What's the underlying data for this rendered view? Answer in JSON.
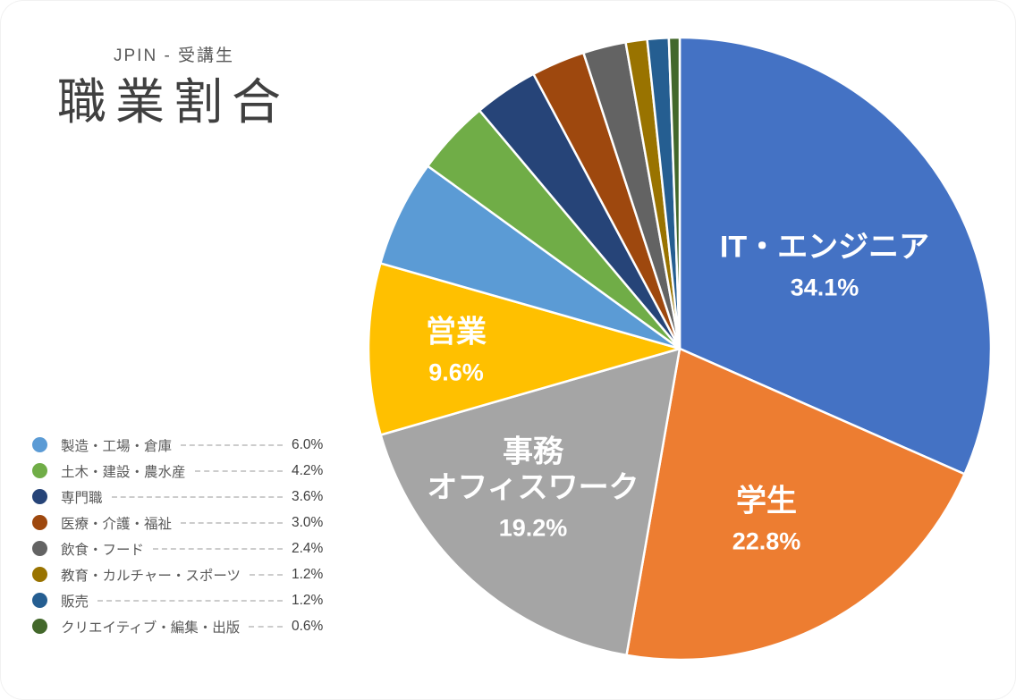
{
  "header": {
    "subtitle": "JPIN - 受講生",
    "title": "職業割合"
  },
  "chart_data": {
    "type": "pie",
    "title": "職業割合",
    "subtitle": "JPIN - 受講生",
    "start_angle_deg": 0,
    "direction": "clockwise",
    "legend_position": "bottom-left",
    "categories": [
      "IT・エンジニア",
      "学生",
      "事務オフィスワーク",
      "営業",
      "製造・工場・倉庫",
      "土木・建設・農水産",
      "専門職",
      "医療・介護・福祉",
      "飲食・フード",
      "教育・カルチャー・スポーツ",
      "販売",
      "クリエイティブ・編集・出版"
    ],
    "values": [
      34.1,
      22.8,
      19.2,
      9.6,
      6.0,
      4.2,
      3.6,
      3.0,
      2.4,
      1.2,
      1.2,
      0.6
    ],
    "colors": [
      "#4472C4",
      "#ED7D31",
      "#A5A5A5",
      "#FFC000",
      "#5B9BD5",
      "#70AD47",
      "#264478",
      "#9E480E",
      "#636363",
      "#997300",
      "#255E91",
      "#43682B"
    ],
    "slice_labels": [
      {
        "lines": [
          "IT・エンジニア"
        ],
        "pct": "34.1%"
      },
      {
        "lines": [
          "学生"
        ],
        "pct": "22.8%"
      },
      {
        "lines": [
          "事務",
          "オフィスワーク"
        ],
        "pct": "19.2%"
      },
      {
        "lines": [
          "営業"
        ],
        "pct": "9.6%"
      }
    ]
  },
  "legend": {
    "items": [
      {
        "label": "製造・工場・倉庫",
        "value": "6.0%",
        "color": "#5B9BD5"
      },
      {
        "label": "土木・建設・農水産",
        "value": "4.2%",
        "color": "#70AD47"
      },
      {
        "label": "専門職",
        "value": "3.6%",
        "color": "#264478"
      },
      {
        "label": "医療・介護・福祉",
        "value": "3.0%",
        "color": "#9E480E"
      },
      {
        "label": "飲食・フード",
        "value": "2.4%",
        "color": "#636363"
      },
      {
        "label": "教育・カルチャー・スポーツ",
        "value": "1.2%",
        "color": "#997300"
      },
      {
        "label": "販売",
        "value": "1.2%",
        "color": "#255E91"
      },
      {
        "label": "クリエイティブ・編集・出版",
        "value": "0.6%",
        "color": "#43682B"
      }
    ]
  }
}
